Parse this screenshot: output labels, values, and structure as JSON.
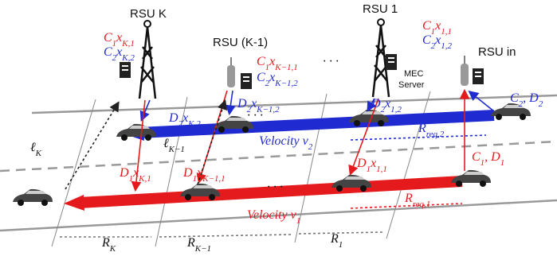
{
  "rsus": [
    "RSU K",
    "RSU (K-1)",
    "RSU 1",
    "RSU in"
  ],
  "mec_server": [
    "MEC",
    "Server"
  ],
  "dots": [
    "· · ·",
    "· · ·",
    "· · ·"
  ],
  "labels": [
    [
      [
        "C",
        "1"
      ],
      [
        "x",
        "K,1"
      ]
    ],
    [
      [
        "C",
        "2"
      ],
      [
        "x",
        "K,2"
      ]
    ],
    [
      [
        "C",
        "1"
      ],
      [
        "x",
        "K−1,1"
      ]
    ],
    [
      [
        "C",
        "2"
      ],
      [
        "x",
        "K−1,2"
      ]
    ],
    [
      [
        "C",
        "1"
      ],
      [
        "x",
        "1,1"
      ]
    ],
    [
      [
        "C",
        "2"
      ],
      [
        "x",
        "1,2"
      ]
    ],
    [
      [
        "D",
        "2"
      ],
      [
        "x",
        "K,2"
      ]
    ],
    [
      [
        "D",
        "2"
      ],
      [
        "x",
        "K−1,2"
      ]
    ],
    [
      [
        "D",
        "2"
      ],
      [
        "x",
        "1,2"
      ]
    ],
    [
      [
        "C",
        "2"
      ],
      [
        ", D",
        "2"
      ]
    ],
    [
      [
        "ℓ",
        "K"
      ]
    ],
    [
      [
        "ℓ",
        "K−1"
      ]
    ],
    [
      [
        "Velocity v",
        "2"
      ]
    ],
    [
      [
        "R",
        "req,2"
      ]
    ],
    [
      [
        "D",
        "1"
      ],
      [
        "x",
        "K,1"
      ]
    ],
    [
      [
        "D",
        "1"
      ],
      [
        "x",
        "K−1,1"
      ]
    ],
    [
      [
        "D",
        "1"
      ],
      [
        "x",
        "1,1"
      ]
    ],
    [
      [
        "C",
        "1"
      ],
      [
        ", D",
        "1"
      ]
    ],
    [
      [
        "Velocity v",
        "1"
      ]
    ],
    [
      [
        "R",
        "req,1"
      ]
    ],
    [
      [
        "R",
        "K"
      ]
    ],
    [
      [
        "R",
        "K−1"
      ]
    ],
    [
      [
        "R",
        "1"
      ]
    ]
  ]
}
